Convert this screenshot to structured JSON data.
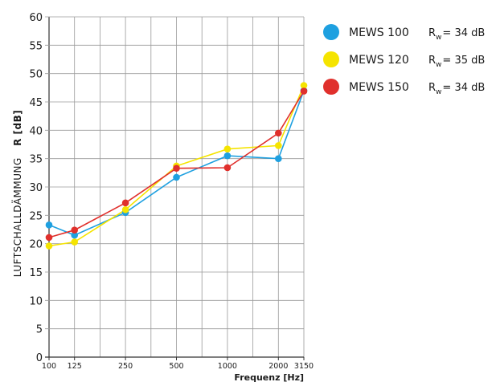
{
  "chart_data": {
    "type": "line",
    "xlabel": "Frequenz [Hz]",
    "ylabel": "LUFTSCHALLDÄMMUNG",
    "ylabel_symbol": "R [dB]",
    "categories": [
      "100",
      "125",
      "250",
      "500",
      "1000",
      "2000",
      "3150"
    ],
    "x_positions": [
      0,
      1,
      3,
      5,
      7,
      9,
      10
    ],
    "x_grid_cells": 10,
    "ylim": [
      0,
      60
    ],
    "y_ticks": [
      0,
      5,
      10,
      15,
      20,
      25,
      30,
      35,
      40,
      45,
      50,
      55,
      60
    ],
    "grid": true,
    "legend_position": "right",
    "series": [
      {
        "name": "MEWS 100",
        "rating_prefix": "R",
        "rating_sub": "w",
        "rating_value": "= 34 dB",
        "color": "#1ea0e0",
        "values": [
          23.3,
          21.5,
          25.5,
          31.7,
          35.5,
          35.0,
          47.0
        ]
      },
      {
        "name": "MEWS 120",
        "rating_prefix": "R",
        "rating_sub": "w",
        "rating_value": "= 35 dB",
        "color": "#f5e400",
        "values": [
          19.6,
          20.3,
          26.0,
          33.7,
          36.7,
          37.3,
          47.9
        ]
      },
      {
        "name": "MEWS 150",
        "rating_prefix": "R",
        "rating_sub": "w",
        "rating_value": "= 34 dB",
        "color": "#e0302c",
        "values": [
          21.1,
          22.4,
          27.2,
          33.3,
          33.4,
          39.5,
          46.9
        ]
      }
    ]
  }
}
